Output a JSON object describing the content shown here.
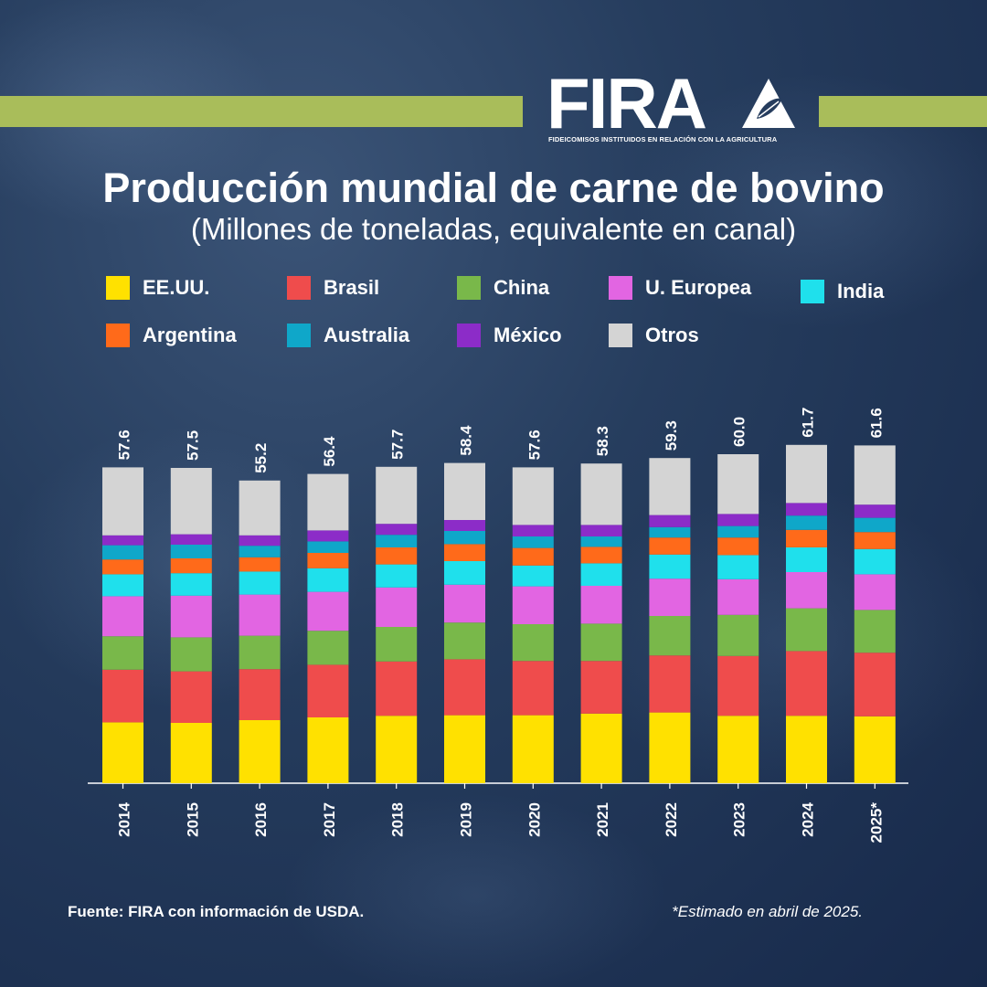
{
  "header": {
    "logo_text": "FIRA",
    "logo_subtitle": "FIDEICOMISOS INSTITUIDOS EN RELACIÓN CON LA AGRICULTURA"
  },
  "chart_data": {
    "type": "bar",
    "stacked": true,
    "title": "Producción mundial de carne de bovino",
    "subtitle": "(Millones de toneladas, equivalente en canal)",
    "categories": [
      "2014",
      "2015",
      "2016",
      "2017",
      "2018",
      "2019",
      "2020",
      "2021",
      "2022",
      "2023",
      "2024",
      "2025*"
    ],
    "totals": [
      57.6,
      57.5,
      55.2,
      56.4,
      57.7,
      58.4,
      57.6,
      58.3,
      59.3,
      60.0,
      61.7,
      61.6
    ],
    "series": [
      {
        "name": "EE.UU.",
        "color": "#ffe100",
        "values": [
          11.1,
          11.0,
          11.5,
          12.0,
          12.3,
          12.4,
          12.4,
          12.7,
          12.9,
          12.3,
          12.3,
          12.2
        ]
      },
      {
        "name": "Brasil",
        "color": "#ef4c4c",
        "values": [
          9.6,
          9.4,
          9.3,
          9.6,
          9.9,
          10.2,
          9.9,
          9.6,
          10.4,
          10.9,
          11.8,
          11.6
        ]
      },
      {
        "name": "China",
        "color": "#79b84a",
        "values": [
          6.1,
          6.2,
          6.1,
          6.2,
          6.3,
          6.7,
          6.7,
          6.8,
          7.2,
          7.5,
          7.8,
          7.8
        ]
      },
      {
        "name": "U. Europea",
        "color": "#e265e2",
        "values": [
          7.3,
          7.6,
          7.5,
          7.1,
          7.2,
          6.9,
          6.9,
          6.9,
          6.8,
          6.5,
          6.6,
          6.5
        ]
      },
      {
        "name": "India",
        "color": "#1fe0ec",
        "values": [
          4.0,
          4.1,
          4.2,
          4.3,
          4.2,
          4.3,
          3.8,
          4.1,
          4.4,
          4.4,
          4.5,
          4.6
        ]
      },
      {
        "name": "Argentina",
        "color": "#ff6a1a",
        "values": [
          2.7,
          2.7,
          2.6,
          2.8,
          3.1,
          3.1,
          3.2,
          3.0,
          3.1,
          3.2,
          3.2,
          3.1
        ]
      },
      {
        "name": "Australia",
        "color": "#0fa7c9",
        "values": [
          2.6,
          2.5,
          2.1,
          2.1,
          2.3,
          2.4,
          2.1,
          1.9,
          1.9,
          2.1,
          2.6,
          2.6
        ]
      },
      {
        "name": "México",
        "color": "#8c2cc8",
        "values": [
          1.8,
          1.9,
          1.9,
          2.0,
          2.0,
          2.0,
          2.1,
          2.1,
          2.2,
          2.2,
          2.3,
          2.4
        ]
      },
      {
        "name": "Otros",
        "color": "#d4d4d4",
        "values": [
          12.4,
          12.1,
          10.0,
          10.3,
          10.4,
          10.4,
          10.5,
          11.2,
          10.4,
          10.9,
          10.6,
          10.8
        ]
      }
    ],
    "ylim": [
      0,
      62
    ],
    "grid": false,
    "legend": "top"
  },
  "footer": {
    "source": "Fuente: FIRA con información de USDA.",
    "note": "*Estimado en abril de 2025."
  },
  "colors": {
    "accent_green": "#a9bd5a",
    "background": "#263d5e"
  }
}
